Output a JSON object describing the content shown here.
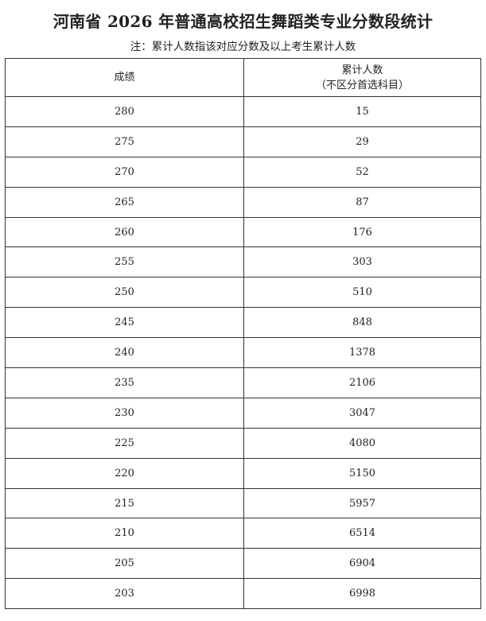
{
  "title": "河南省 2026 年普通高校招生舞蹈类专业分数段统计",
  "note": "注：累计人数指该对应分数及以上考生累计人数",
  "table": {
    "headers": {
      "score": "成绩",
      "cumulative": "累计人数",
      "cumulative_sub": "（不区分首选科目）"
    },
    "rows": [
      {
        "score": "280",
        "count": "15"
      },
      {
        "score": "275",
        "count": "29"
      },
      {
        "score": "270",
        "count": "52"
      },
      {
        "score": "265",
        "count": "87"
      },
      {
        "score": "260",
        "count": "176"
      },
      {
        "score": "255",
        "count": "303"
      },
      {
        "score": "250",
        "count": "510"
      },
      {
        "score": "245",
        "count": "848"
      },
      {
        "score": "240",
        "count": "1378"
      },
      {
        "score": "235",
        "count": "2106"
      },
      {
        "score": "230",
        "count": "3047"
      },
      {
        "score": "225",
        "count": "4080"
      },
      {
        "score": "220",
        "count": "5150"
      },
      {
        "score": "215",
        "count": "5957"
      },
      {
        "score": "210",
        "count": "6514"
      },
      {
        "score": "205",
        "count": "6904"
      },
      {
        "score": "203",
        "count": "6998"
      }
    ]
  }
}
